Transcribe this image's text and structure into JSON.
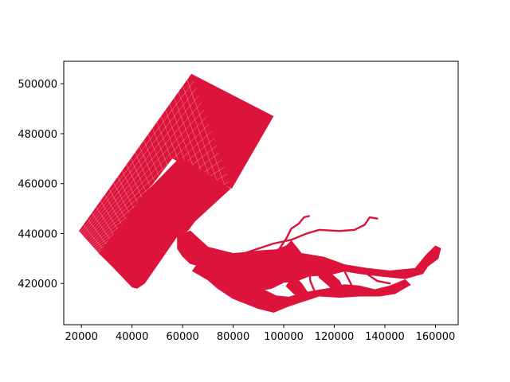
{
  "chart_data": {
    "type": "map",
    "xlim": [
      13000,
      169000
    ],
    "ylim": [
      403500,
      509000
    ],
    "x_ticks": [
      20000,
      40000,
      60000,
      80000,
      100000,
      120000,
      140000,
      160000
    ],
    "x_tick_labels": [
      "20000",
      "40000",
      "60000",
      "80000",
      "100000",
      "120000",
      "140000",
      "160000"
    ],
    "y_ticks": [
      420000,
      440000,
      460000,
      480000,
      500000
    ],
    "y_tick_labels": [
      "420000",
      "440000",
      "460000",
      "480000",
      "500000"
    ],
    "fill_color": "#dc143c",
    "edge_color": "#ffffff",
    "grid": false,
    "outer_grid": {
      "corners": [
        [
          63500,
          504000
        ],
        [
          96000,
          487000
        ],
        [
          79500,
          458000
        ],
        [
          56000,
          470000
        ],
        [
          27000,
          432000
        ],
        [
          19000,
          441000
        ]
      ],
      "cells_along": 26,
      "cells_across": 16
    },
    "inner_block": [
      [
        59000,
        470500
      ],
      [
        79000,
        458000
      ],
      [
        65000,
        445000
      ],
      [
        62000,
        441000
      ],
      [
        58000,
        439000
      ],
      [
        45000,
        420000
      ],
      [
        42000,
        418000
      ],
      [
        40000,
        418500
      ],
      [
        32000,
        427000
      ],
      [
        27000,
        432000
      ],
      [
        45000,
        456000
      ]
    ],
    "estuary": [
      [
        [
          58000,
          439000
        ],
        [
          63000,
          441000
        ],
        [
          70000,
          434500
        ],
        [
          80000,
          432000
        ],
        [
          86000,
          432500
        ],
        [
          90000,
          433000
        ],
        [
          97000,
          433500
        ],
        [
          101000,
          435000
        ],
        [
          103000,
          437000
        ],
        [
          107000,
          432000
        ],
        [
          116000,
          430500
        ],
        [
          124000,
          427500
        ],
        [
          133000,
          426000
        ],
        [
          142000,
          425000
        ],
        [
          152000,
          426000
        ],
        [
          156000,
          431000
        ],
        [
          160000,
          435000
        ],
        [
          162000,
          434000
        ],
        [
          161000,
          430000
        ],
        [
          157000,
          427000
        ],
        [
          155000,
          424000
        ],
        [
          148000,
          422000
        ],
        [
          138000,
          423000
        ],
        [
          130000,
          424000
        ],
        [
          124000,
          425000
        ],
        [
          118000,
          423500
        ],
        [
          110000,
          423000
        ],
        [
          105000,
          421000
        ],
        [
          100000,
          420500
        ],
        [
          95000,
          418000
        ],
        [
          91000,
          417500
        ],
        [
          86000,
          417000
        ],
        [
          83000,
          415000
        ],
        [
          78000,
          418000
        ],
        [
          76000,
          421000
        ],
        [
          71000,
          424000
        ],
        [
          67000,
          427000
        ],
        [
          63000,
          428000
        ],
        [
          60000,
          431000
        ],
        [
          58000,
          434000
        ]
      ],
      [
        [
          66000,
          428000
        ],
        [
          77000,
          424000
        ],
        [
          84000,
          419000
        ],
        [
          90000,
          418500
        ],
        [
          97000,
          415000
        ],
        [
          102000,
          414500
        ],
        [
          107000,
          416000
        ],
        [
          112000,
          417000
        ],
        [
          118000,
          418000
        ],
        [
          124000,
          419500
        ],
        [
          130000,
          419000
        ],
        [
          136000,
          417500
        ],
        [
          142000,
          419000
        ],
        [
          148000,
          421500
        ],
        [
          150000,
          419500
        ],
        [
          144000,
          416000
        ],
        [
          138000,
          415000
        ],
        [
          130000,
          415000
        ],
        [
          122000,
          414500
        ],
        [
          114000,
          415000
        ],
        [
          108000,
          413000
        ],
        [
          102000,
          411000
        ],
        [
          96000,
          408500
        ],
        [
          90000,
          410000
        ],
        [
          85000,
          412000
        ],
        [
          80000,
          414000
        ],
        [
          74000,
          418000
        ],
        [
          70000,
          421500
        ],
        [
          64000,
          425000
        ]
      ],
      [
        [
          104000,
          423000
        ],
        [
          107000,
          420000
        ],
        [
          109000,
          417000
        ],
        [
          111000,
          414000
        ],
        [
          108000,
          413500
        ],
        [
          104000,
          416000
        ],
        [
          101000,
          419000
        ]
      ],
      [
        [
          113000,
          426500
        ],
        [
          118000,
          424500
        ],
        [
          122000,
          421000
        ],
        [
          124000,
          417000
        ],
        [
          121000,
          415500
        ],
        [
          118000,
          419000
        ],
        [
          114000,
          422500
        ]
      ]
    ],
    "rivers": [
      [
        [
          84000,
          432000
        ],
        [
          96000,
          436000
        ],
        [
          103000,
          437500
        ],
        [
          109000,
          440000
        ],
        [
          114000,
          441500
        ],
        [
          122000,
          441000
        ],
        [
          128000,
          441500
        ],
        [
          132000,
          443500
        ],
        [
          134000,
          446500
        ],
        [
          137000,
          446000
        ]
      ],
      [
        [
          98000,
          433500
        ],
        [
          101000,
          438000
        ],
        [
          103000,
          442000
        ],
        [
          106000,
          444000
        ],
        [
          108000,
          446500
        ],
        [
          110000,
          447000
        ]
      ],
      [
        [
          103000,
          435500
        ],
        [
          104000,
          428000
        ],
        [
          104500,
          422000
        ]
      ],
      [
        [
          110000,
          427000
        ],
        [
          110500,
          421000
        ],
        [
          112000,
          417500
        ]
      ],
      [
        [
          124000,
          425000
        ],
        [
          127000,
          419000
        ],
        [
          133000,
          416000
        ]
      ],
      [
        [
          132000,
          424500
        ],
        [
          137000,
          421000
        ],
        [
          142000,
          420000
        ]
      ]
    ]
  }
}
